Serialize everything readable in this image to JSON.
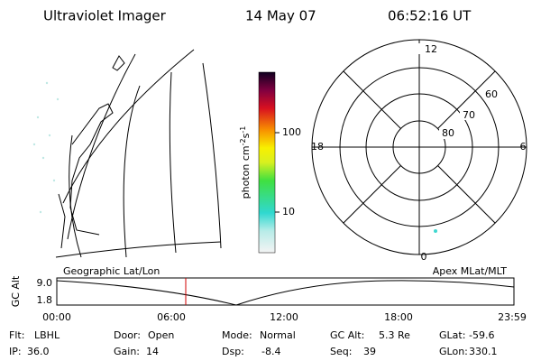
{
  "header": {
    "title": "Ultraviolet Imager",
    "date": "14 May 07",
    "time": "06:52:16 UT"
  },
  "colorbar": {
    "label": "photon cm",
    "exp1": "-2",
    "unit2": "s",
    "exp2": "-1",
    "ticks": [
      "100",
      "10"
    ]
  },
  "polar": {
    "mlt_labels": {
      "top": "12",
      "left": "18",
      "right": "6",
      "bottom": "0"
    },
    "lat_labels": [
      "60",
      "70",
      "80"
    ]
  },
  "altitude": {
    "left_label": "Geographic Lat/Lon",
    "right_label": "Apex MLat/MLT",
    "y_label": "GC Alt",
    "y_ticks": [
      "9.0",
      "1.8"
    ],
    "x_ticks": [
      "00:00",
      "06:00",
      "12:00",
      "18:00",
      "23:59"
    ]
  },
  "footer": {
    "rows": [
      [
        {
          "label": "Flt:",
          "value": "LBHL"
        },
        {
          "label": "Door:",
          "value": "Open"
        },
        {
          "label": "Mode:",
          "value": "Normal"
        },
        {
          "label": "GC Alt:",
          "value": "5.3 Re"
        },
        {
          "label": "GLat:",
          "value": "-59.6"
        }
      ],
      [
        {
          "label": "IP:",
          "value": "36.0"
        },
        {
          "label": "Gain:",
          "value": "14"
        },
        {
          "label": "Dsp:",
          "value": "-8.4"
        },
        {
          "label": "Seq:",
          "value": "39"
        },
        {
          "label": "GLon:",
          "value": "330.1"
        }
      ]
    ]
  }
}
